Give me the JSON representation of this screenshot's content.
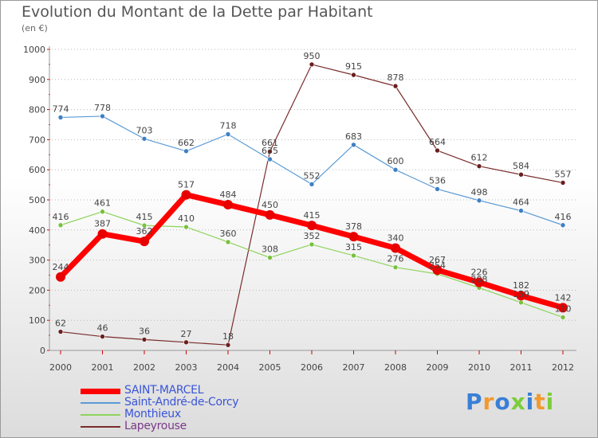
{
  "title": "Evolution du Montant de la Dette par Habitant",
  "unit": "(en €)",
  "brand": {
    "letters": [
      {
        "ch": "P",
        "color": "#3a7fd6"
      },
      {
        "ch": "r",
        "color": "#f29a2e"
      },
      {
        "ch": "o",
        "color": "#3a7fd6"
      },
      {
        "ch": "x",
        "color": "#7ccd3a"
      },
      {
        "ch": "i",
        "color": "#3a7fd6"
      },
      {
        "ch": "t",
        "color": "#f29a2e"
      },
      {
        "ch": "i",
        "color": "#7ccd3a"
      }
    ]
  },
  "chart_data": {
    "type": "line",
    "title": "Evolution du Montant de la Dette par Habitant",
    "ylabel": "(en €)",
    "xlabel": "",
    "x": [
      "2000",
      "2001",
      "2002",
      "2003",
      "2004",
      "2005",
      "2006",
      "2007",
      "2008",
      "2009",
      "2010",
      "2011",
      "2012"
    ],
    "ylim": [
      0,
      1000
    ],
    "yticks": [
      "0",
      "100",
      "200",
      "300",
      "400",
      "500",
      "600",
      "700",
      "800",
      "900",
      "1000"
    ],
    "grid": "horizontal dotted",
    "legend_position": "bottom-left",
    "series": [
      {
        "name": "SAINT-MARCEL",
        "color": "#ff0000",
        "marker": "#e80000",
        "width": 7,
        "r": 6,
        "values": [
          244,
          387,
          362,
          517,
          484,
          450,
          415,
          378,
          340,
          267,
          226,
          182,
          142
        ],
        "labels": [
          "244",
          "387",
          "362",
          "517",
          "484",
          "450",
          "415",
          "378",
          "340",
          "267",
          "226",
          "182",
          "142"
        ]
      },
      {
        "name": "Saint-André-de-Corcy",
        "color": "#5b9bd5",
        "marker": "#3f7fc4",
        "width": 1.2,
        "r": 3,
        "values": [
          774,
          778,
          703,
          662,
          718,
          635,
          552,
          683,
          600,
          536,
          498,
          464,
          416
        ],
        "labels": [
          "774",
          "778",
          "703",
          "662",
          "718",
          "635",
          "552",
          "683",
          "600",
          "536",
          "498",
          "464",
          "416"
        ]
      },
      {
        "name": "Monthieux",
        "color": "#8fd35c",
        "marker": "#79c03f",
        "width": 1.2,
        "r": 3,
        "values": [
          416,
          461,
          415,
          410,
          360,
          308,
          352,
          315,
          276,
          254,
          208,
          159,
          110
        ],
        "labels": [
          "416",
          "461",
          "415",
          "410",
          "360",
          "308",
          "352",
          "315",
          "276",
          "254",
          "208",
          "159",
          "110"
        ]
      },
      {
        "name": "Lapeyrouse",
        "color": "#7a2c2c",
        "marker": "#6a1f1f",
        "width": 1.2,
        "r": 3,
        "values": [
          62,
          46,
          36,
          27,
          18,
          661,
          950,
          915,
          878,
          664,
          612,
          584,
          557
        ],
        "labels": [
          "62",
          "46",
          "36",
          "27",
          "18",
          "661",
          "950",
          "915",
          "878",
          "664",
          "612",
          "584",
          "557"
        ]
      }
    ]
  }
}
